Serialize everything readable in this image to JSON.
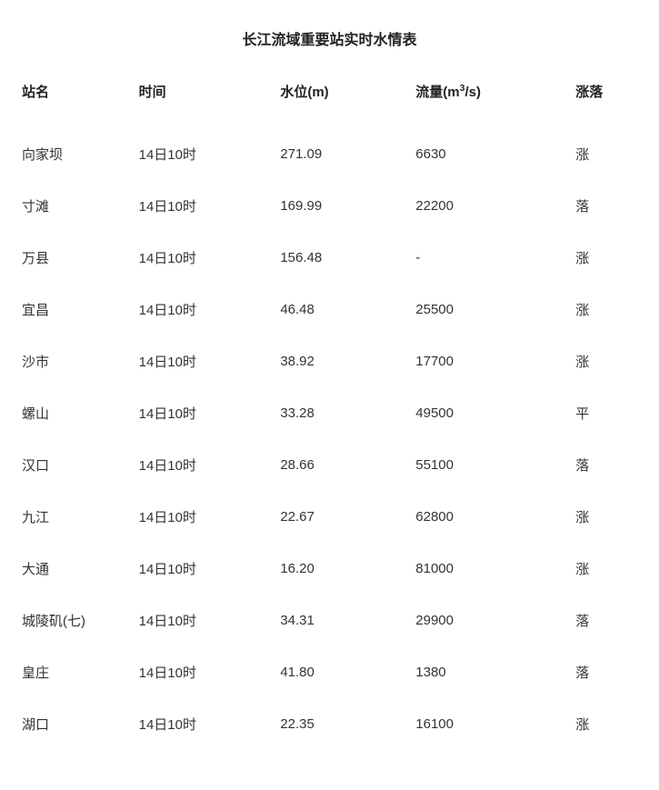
{
  "title": "长江流域重要站实时水情表",
  "columns": {
    "name": "站名",
    "time": "时间",
    "level_pre": "水位(m)",
    "flow_pre": "流量(m",
    "flow_sup": "3",
    "flow_post": "/s)",
    "trend": "涨落"
  },
  "rows": [
    {
      "name": "向家坝",
      "time": "14日10时",
      "level": "271.09",
      "flow": "6630",
      "trend": "涨"
    },
    {
      "name": "寸滩",
      "time": "14日10时",
      "level": "169.99",
      "flow": "22200",
      "trend": "落"
    },
    {
      "name": "万县",
      "time": "14日10时",
      "level": "156.48",
      "flow": "-",
      "trend": "涨"
    },
    {
      "name": "宜昌",
      "time": "14日10时",
      "level": "46.48",
      "flow": "25500",
      "trend": "涨"
    },
    {
      "name": "沙市",
      "time": "14日10时",
      "level": "38.92",
      "flow": "17700",
      "trend": "涨"
    },
    {
      "name": "螺山",
      "time": "14日10时",
      "level": "33.28",
      "flow": "49500",
      "trend": "平"
    },
    {
      "name": "汉口",
      "time": "14日10时",
      "level": "28.66",
      "flow": "55100",
      "trend": "落"
    },
    {
      "name": "九江",
      "time": "14日10时",
      "level": "22.67",
      "flow": "62800",
      "trend": "涨"
    },
    {
      "name": "大通",
      "time": "14日10时",
      "level": "16.20",
      "flow": "81000",
      "trend": "涨"
    },
    {
      "name": "城陵矶(七)",
      "time": "14日10时",
      "level": "34.31",
      "flow": "29900",
      "trend": "落"
    },
    {
      "name": "皇庄",
      "time": "14日10时",
      "level": "41.80",
      "flow": "1380",
      "trend": "落"
    },
    {
      "name": "湖口",
      "time": "14日10时",
      "level": "22.35",
      "flow": "16100",
      "trend": "涨"
    }
  ],
  "styling": {
    "background_color": "#ffffff",
    "text_color": "#333333",
    "header_color": "#222222",
    "title_fontsize": 16,
    "header_fontsize": 15,
    "cell_fontsize": 15,
    "row_padding_v": 18
  }
}
